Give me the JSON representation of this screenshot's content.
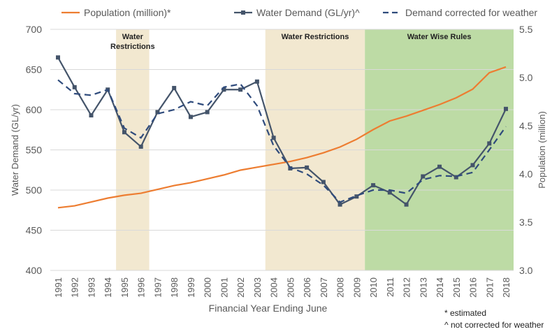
{
  "chart_data": {
    "type": "line",
    "x": [
      1991,
      1992,
      1993,
      1994,
      1995,
      1996,
      1997,
      1998,
      1999,
      2000,
      2001,
      2002,
      2003,
      2004,
      2005,
      2006,
      2007,
      2008,
      2009,
      2010,
      2011,
      2012,
      2013,
      2014,
      2015,
      2016,
      2017,
      2018
    ],
    "xlabel": "Financial Year Ending June",
    "ylabel": "Water Demand (GL/yr)",
    "ylim": [
      400,
      700
    ],
    "yticks": [
      400,
      450,
      500,
      550,
      600,
      650,
      700
    ],
    "y2label": "Population (million)",
    "y2lim": [
      3.0,
      5.5
    ],
    "y2ticks": [
      "3.0",
      "3.5",
      "4.0",
      "4.5",
      "5.0",
      "5.5"
    ],
    "grid": true,
    "legend": "top",
    "series": [
      {
        "name": "Population (million)*",
        "axis": "right",
        "color": "#ED7D31",
        "style": "solid",
        "values": [
          3.65,
          3.67,
          3.71,
          3.75,
          3.78,
          3.8,
          3.84,
          3.88,
          3.91,
          3.95,
          3.99,
          4.04,
          4.07,
          4.1,
          4.13,
          4.17,
          4.22,
          4.28,
          4.36,
          4.46,
          4.55,
          4.6,
          4.66,
          4.72,
          4.79,
          4.88,
          5.05,
          5.11
        ]
      },
      {
        "name": "Water Demand (GL/yr)^",
        "axis": "left",
        "color": "#44546A",
        "style": "solid-markers",
        "values": [
          665,
          628,
          593,
          625,
          572,
          554,
          597,
          627,
          591,
          597,
          625,
          625,
          635,
          565,
          527,
          528,
          510,
          482,
          492,
          506,
          497,
          482,
          517,
          529,
          516,
          531,
          558,
          601
        ]
      },
      {
        "name": "Demand corrected for weather",
        "axis": "left",
        "color": "#2F4B7C",
        "style": "dashed",
        "values": [
          637,
          620,
          618,
          625,
          577,
          565,
          595,
          600,
          610,
          605,
          628,
          632,
          605,
          555,
          528,
          520,
          506,
          485,
          493,
          500,
          500,
          496,
          513,
          518,
          517,
          522,
          550,
          579
        ]
      }
    ],
    "annotations": [
      {
        "label": "Water Restrictions",
        "lines": [
          "Water",
          "Restrictions"
        ],
        "from": 1994.5,
        "to": 1996.5,
        "color": "#F2E8D0"
      },
      {
        "label": "Water Restrictions",
        "lines": [
          "Water Restrictions"
        ],
        "from": 2003.5,
        "to": 2009.5,
        "color": "#F2E8D0"
      },
      {
        "label": "Water Wise Rules",
        "lines": [
          "Water Wise Rules"
        ],
        "from": 2009.5,
        "to": 2018.5,
        "color": "#BDDBA5"
      }
    ]
  },
  "notes": {
    "estimated": "* estimated",
    "not_corrected": "^ not corrected for weather"
  }
}
